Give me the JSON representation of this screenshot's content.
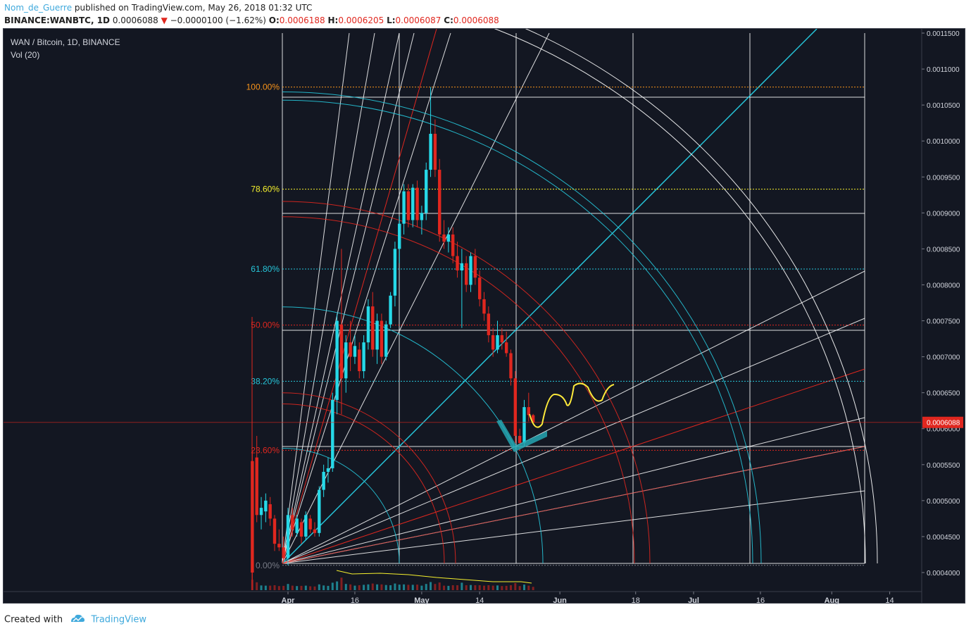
{
  "header": {
    "author": "Nom_de_Guerre",
    "published": "published on TradingView.com, May 26, 2018 01:32 UTC"
  },
  "ohlc": {
    "symbol": "BINANCE:WANBTC, 1D",
    "last": "0.0006088",
    "change": "−0.0000100 (−1.62%)",
    "o_label": "O:",
    "o": "0.0006188",
    "h_label": "H:",
    "h": "0.0006205",
    "l_label": "L:",
    "l": "0.0006087",
    "c_label": "C:",
    "c": "0.0006088"
  },
  "legend": {
    "title": "WAN / Bitcoin, 1D, BINANCE",
    "volume": "Vol (20)"
  },
  "footer": {
    "created": "Created with",
    "brand": "TradingView"
  },
  "colors": {
    "background": "#131722",
    "up": "#26d9e8",
    "down": "#e0271f",
    "grid": "#ffffff",
    "fib_100": "#f7931a",
    "fib_786": "#f5f02d",
    "fib_618": "#26c6da",
    "fib_50": "#e0271f",
    "fib_382": "#26c6da",
    "fib_236": "#e0271f",
    "fib_0": "#787b86",
    "projection": "#ffeb3b"
  },
  "chart_data": {
    "type": "candlestick",
    "symbol": "WAN / Bitcoin",
    "interval": "1D",
    "exchange": "BINANCE",
    "y_axis_ticks": [
      "0.0011500",
      "0.0011000",
      "0.0010500",
      "0.0010000",
      "0.0009500",
      "0.0009000",
      "0.0008500",
      "0.0008000",
      "0.0007500",
      "0.0007000",
      "0.0006500",
      "0.0006000",
      "0.0005500",
      "0.0005000",
      "0.0004500",
      "0.0004000"
    ],
    "ylim": [
      0.00039,
      0.00117
    ],
    "x_axis_ticks": [
      "Apr",
      "16",
      "May",
      "14",
      "Jun",
      "18",
      "Jul",
      "16",
      "Aug",
      "14"
    ],
    "x_axis_tick_dates": [
      "2018-04-01",
      "2018-04-16",
      "2018-05-01",
      "2018-05-14",
      "2018-06-01",
      "2018-06-18",
      "2018-07-01",
      "2018-07-16",
      "2018-08-01",
      "2018-08-14"
    ],
    "last_price_label": "0.0006088",
    "last_price": 0.0006088,
    "fib_levels": [
      {
        "label": "100.00%",
        "price": 0.001075
      },
      {
        "label": "78.60%",
        "price": 0.000933
      },
      {
        "label": "61.80%",
        "price": 0.000822
      },
      {
        "label": "50.00%",
        "price": 0.000744
      },
      {
        "label": "38.20%",
        "price": 0.000666
      },
      {
        "label": "23.60%",
        "price": 0.00057
      },
      {
        "label": "0.00%",
        "price": 0.00041
      }
    ],
    "candles": [
      {
        "d": "2018-03-24",
        "o": 0.000555,
        "h": 0.00057,
        "l": 0.00039,
        "c": 0.0004
      },
      {
        "d": "2018-03-25",
        "o": 0.00056,
        "h": 0.00059,
        "l": 0.00047,
        "c": 0.00048
      },
      {
        "d": "2018-03-26",
        "o": 0.00048,
        "h": 0.000505,
        "l": 0.00046,
        "c": 0.00049
      },
      {
        "d": "2018-03-27",
        "o": 0.000485,
        "h": 0.00051,
        "l": 0.00047,
        "c": 0.0005
      },
      {
        "d": "2018-03-28",
        "o": 0.000495,
        "h": 0.000505,
        "l": 0.000465,
        "c": 0.000475
      },
      {
        "d": "2018-03-29",
        "o": 0.000475,
        "h": 0.00048,
        "l": 0.00043,
        "c": 0.00044
      },
      {
        "d": "2018-03-30",
        "o": 0.00044,
        "h": 0.00046,
        "l": 0.00043,
        "c": 0.000435
      },
      {
        "d": "2018-03-31",
        "o": 0.000435,
        "h": 0.00045,
        "l": 0.000415,
        "c": 0.00042
      },
      {
        "d": "2018-04-01",
        "o": 0.00042,
        "h": 0.00049,
        "l": 0.00041,
        "c": 0.00048
      },
      {
        "d": "2018-04-02",
        "o": 0.00048,
        "h": 0.00049,
        "l": 0.00045,
        "c": 0.00046
      },
      {
        "d": "2018-04-03",
        "o": 0.000455,
        "h": 0.00048,
        "l": 0.00045,
        "c": 0.000475
      },
      {
        "d": "2018-04-04",
        "o": 0.00047,
        "h": 0.000475,
        "l": 0.00044,
        "c": 0.00045
      },
      {
        "d": "2018-04-05",
        "o": 0.00045,
        "h": 0.000485,
        "l": 0.000445,
        "c": 0.00048
      },
      {
        "d": "2018-04-06",
        "o": 0.000475,
        "h": 0.00048,
        "l": 0.000455,
        "c": 0.00046
      },
      {
        "d": "2018-04-07",
        "o": 0.00046,
        "h": 0.00047,
        "l": 0.00045,
        "c": 0.000455
      },
      {
        "d": "2018-04-08",
        "o": 0.000455,
        "h": 0.00052,
        "l": 0.00045,
        "c": 0.000515
      },
      {
        "d": "2018-04-09",
        "o": 0.000515,
        "h": 0.00055,
        "l": 0.000505,
        "c": 0.00054
      },
      {
        "d": "2018-04-10",
        "o": 0.00054,
        "h": 0.00056,
        "l": 0.000525,
        "c": 0.000545
      },
      {
        "d": "2018-04-11",
        "o": 0.000545,
        "h": 0.00065,
        "l": 0.00054,
        "c": 0.00064
      },
      {
        "d": "2018-04-12",
        "o": 0.00064,
        "h": 0.00076,
        "l": 0.00062,
        "c": 0.00075
      },
      {
        "d": "2018-04-13",
        "o": 0.000745,
        "h": 0.00085,
        "l": 0.00062,
        "c": 0.00067
      },
      {
        "d": "2018-04-14",
        "o": 0.00067,
        "h": 0.00073,
        "l": 0.00065,
        "c": 0.00072
      },
      {
        "d": "2018-04-15",
        "o": 0.00072,
        "h": 0.00075,
        "l": 0.00068,
        "c": 0.0007
      },
      {
        "d": "2018-04-16",
        "o": 0.0007,
        "h": 0.00073,
        "l": 0.00069,
        "c": 0.000715
      },
      {
        "d": "2018-04-17",
        "o": 0.00071,
        "h": 0.00072,
        "l": 0.00067,
        "c": 0.00068
      },
      {
        "d": "2018-04-18",
        "o": 0.00068,
        "h": 0.00073,
        "l": 0.00067,
        "c": 0.00072
      },
      {
        "d": "2018-04-19",
        "o": 0.00072,
        "h": 0.00078,
        "l": 0.00071,
        "c": 0.00077
      },
      {
        "d": "2018-04-20",
        "o": 0.00077,
        "h": 0.00079,
        "l": 0.0007,
        "c": 0.00071
      },
      {
        "d": "2018-04-21",
        "o": 0.00071,
        "h": 0.00076,
        "l": 0.00069,
        "c": 0.00075
      },
      {
        "d": "2018-04-22",
        "o": 0.00075,
        "h": 0.00076,
        "l": 0.00069,
        "c": 0.0007
      },
      {
        "d": "2018-04-23",
        "o": 0.0007,
        "h": 0.00075,
        "l": 0.000695,
        "c": 0.000745
      },
      {
        "d": "2018-04-24",
        "o": 0.000745,
        "h": 0.00079,
        "l": 0.00074,
        "c": 0.000785
      },
      {
        "d": "2018-04-25",
        "o": 0.000785,
        "h": 0.00086,
        "l": 0.00077,
        "c": 0.00085
      },
      {
        "d": "2018-04-26",
        "o": 0.00085,
        "h": 0.000895,
        "l": 0.00083,
        "c": 0.000885
      },
      {
        "d": "2018-04-27",
        "o": 0.000885,
        "h": 0.00094,
        "l": 0.00087,
        "c": 0.00093
      },
      {
        "d": "2018-04-28",
        "o": 0.00093,
        "h": 0.00094,
        "l": 0.00088,
        "c": 0.00089
      },
      {
        "d": "2018-04-29",
        "o": 0.00089,
        "h": 0.00094,
        "l": 0.00088,
        "c": 0.000935
      },
      {
        "d": "2018-04-30",
        "o": 0.000935,
        "h": 0.000945,
        "l": 0.00088,
        "c": 0.00089
      },
      {
        "d": "2018-05-01",
        "o": 0.00089,
        "h": 0.00091,
        "l": 0.00087,
        "c": 0.0009
      },
      {
        "d": "2018-05-02",
        "o": 0.0009,
        "h": 0.00097,
        "l": 0.00089,
        "c": 0.00096
      },
      {
        "d": "2018-05-03",
        "o": 0.00096,
        "h": 0.001075,
        "l": 0.00095,
        "c": 0.00101
      },
      {
        "d": "2018-05-04",
        "o": 0.00101,
        "h": 0.00103,
        "l": 0.00095,
        "c": 0.00096
      },
      {
        "d": "2018-05-05",
        "o": 0.00096,
        "h": 0.000975,
        "l": 0.00086,
        "c": 0.00087
      },
      {
        "d": "2018-05-06",
        "o": 0.00087,
        "h": 0.00089,
        "l": 0.00085,
        "c": 0.00086
      },
      {
        "d": "2018-05-07",
        "o": 0.00086,
        "h": 0.00088,
        "l": 0.000845,
        "c": 0.00087
      },
      {
        "d": "2018-05-08",
        "o": 0.00087,
        "h": 0.00088,
        "l": 0.00083,
        "c": 0.00084
      },
      {
        "d": "2018-05-09",
        "o": 0.00084,
        "h": 0.00086,
        "l": 0.00081,
        "c": 0.00082
      },
      {
        "d": "2018-05-10",
        "o": 0.00082,
        "h": 0.00085,
        "l": 0.00074,
        "c": 0.00083
      },
      {
        "d": "2018-05-11",
        "o": 0.00083,
        "h": 0.00084,
        "l": 0.00079,
        "c": 0.0008
      },
      {
        "d": "2018-05-12",
        "o": 0.0008,
        "h": 0.000845,
        "l": 0.00079,
        "c": 0.00084
      },
      {
        "d": "2018-05-13",
        "o": 0.00084,
        "h": 0.00085,
        "l": 0.0008,
        "c": 0.00081
      },
      {
        "d": "2018-05-14",
        "o": 0.00081,
        "h": 0.00082,
        "l": 0.00077,
        "c": 0.00078
      },
      {
        "d": "2018-05-15",
        "o": 0.00078,
        "h": 0.00079,
        "l": 0.00075,
        "c": 0.00076
      },
      {
        "d": "2018-05-16",
        "o": 0.00076,
        "h": 0.00077,
        "l": 0.00072,
        "c": 0.00073
      },
      {
        "d": "2018-05-17",
        "o": 0.00073,
        "h": 0.00074,
        "l": 0.0007,
        "c": 0.00071
      },
      {
        "d": "2018-05-18",
        "o": 0.00071,
        "h": 0.00075,
        "l": 0.000705,
        "c": 0.00073
      },
      {
        "d": "2018-05-19",
        "o": 0.00073,
        "h": 0.00074,
        "l": 0.00071,
        "c": 0.00072
      },
      {
        "d": "2018-05-20",
        "o": 0.00072,
        "h": 0.000735,
        "l": 0.0007,
        "c": 0.000705
      },
      {
        "d": "2018-05-21",
        "o": 0.000705,
        "h": 0.00071,
        "l": 0.00066,
        "c": 0.00067
      },
      {
        "d": "2018-05-22",
        "o": 0.00067,
        "h": 0.00068,
        "l": 0.00058,
        "c": 0.00059
      },
      {
        "d": "2018-05-23",
        "o": 0.00059,
        "h": 0.0006,
        "l": 0.00057,
        "c": 0.00058
      },
      {
        "d": "2018-05-24",
        "o": 0.00058,
        "h": 0.00064,
        "l": 0.000575,
        "c": 0.00063
      },
      {
        "d": "2018-05-25",
        "o": 0.00063,
        "h": 0.00065,
        "l": 0.00061,
        "c": 0.000619
      },
      {
        "d": "2018-05-26",
        "o": 0.0006188,
        "h": 0.0006205,
        "l": 0.0006087,
        "c": 0.0006088
      }
    ]
  }
}
